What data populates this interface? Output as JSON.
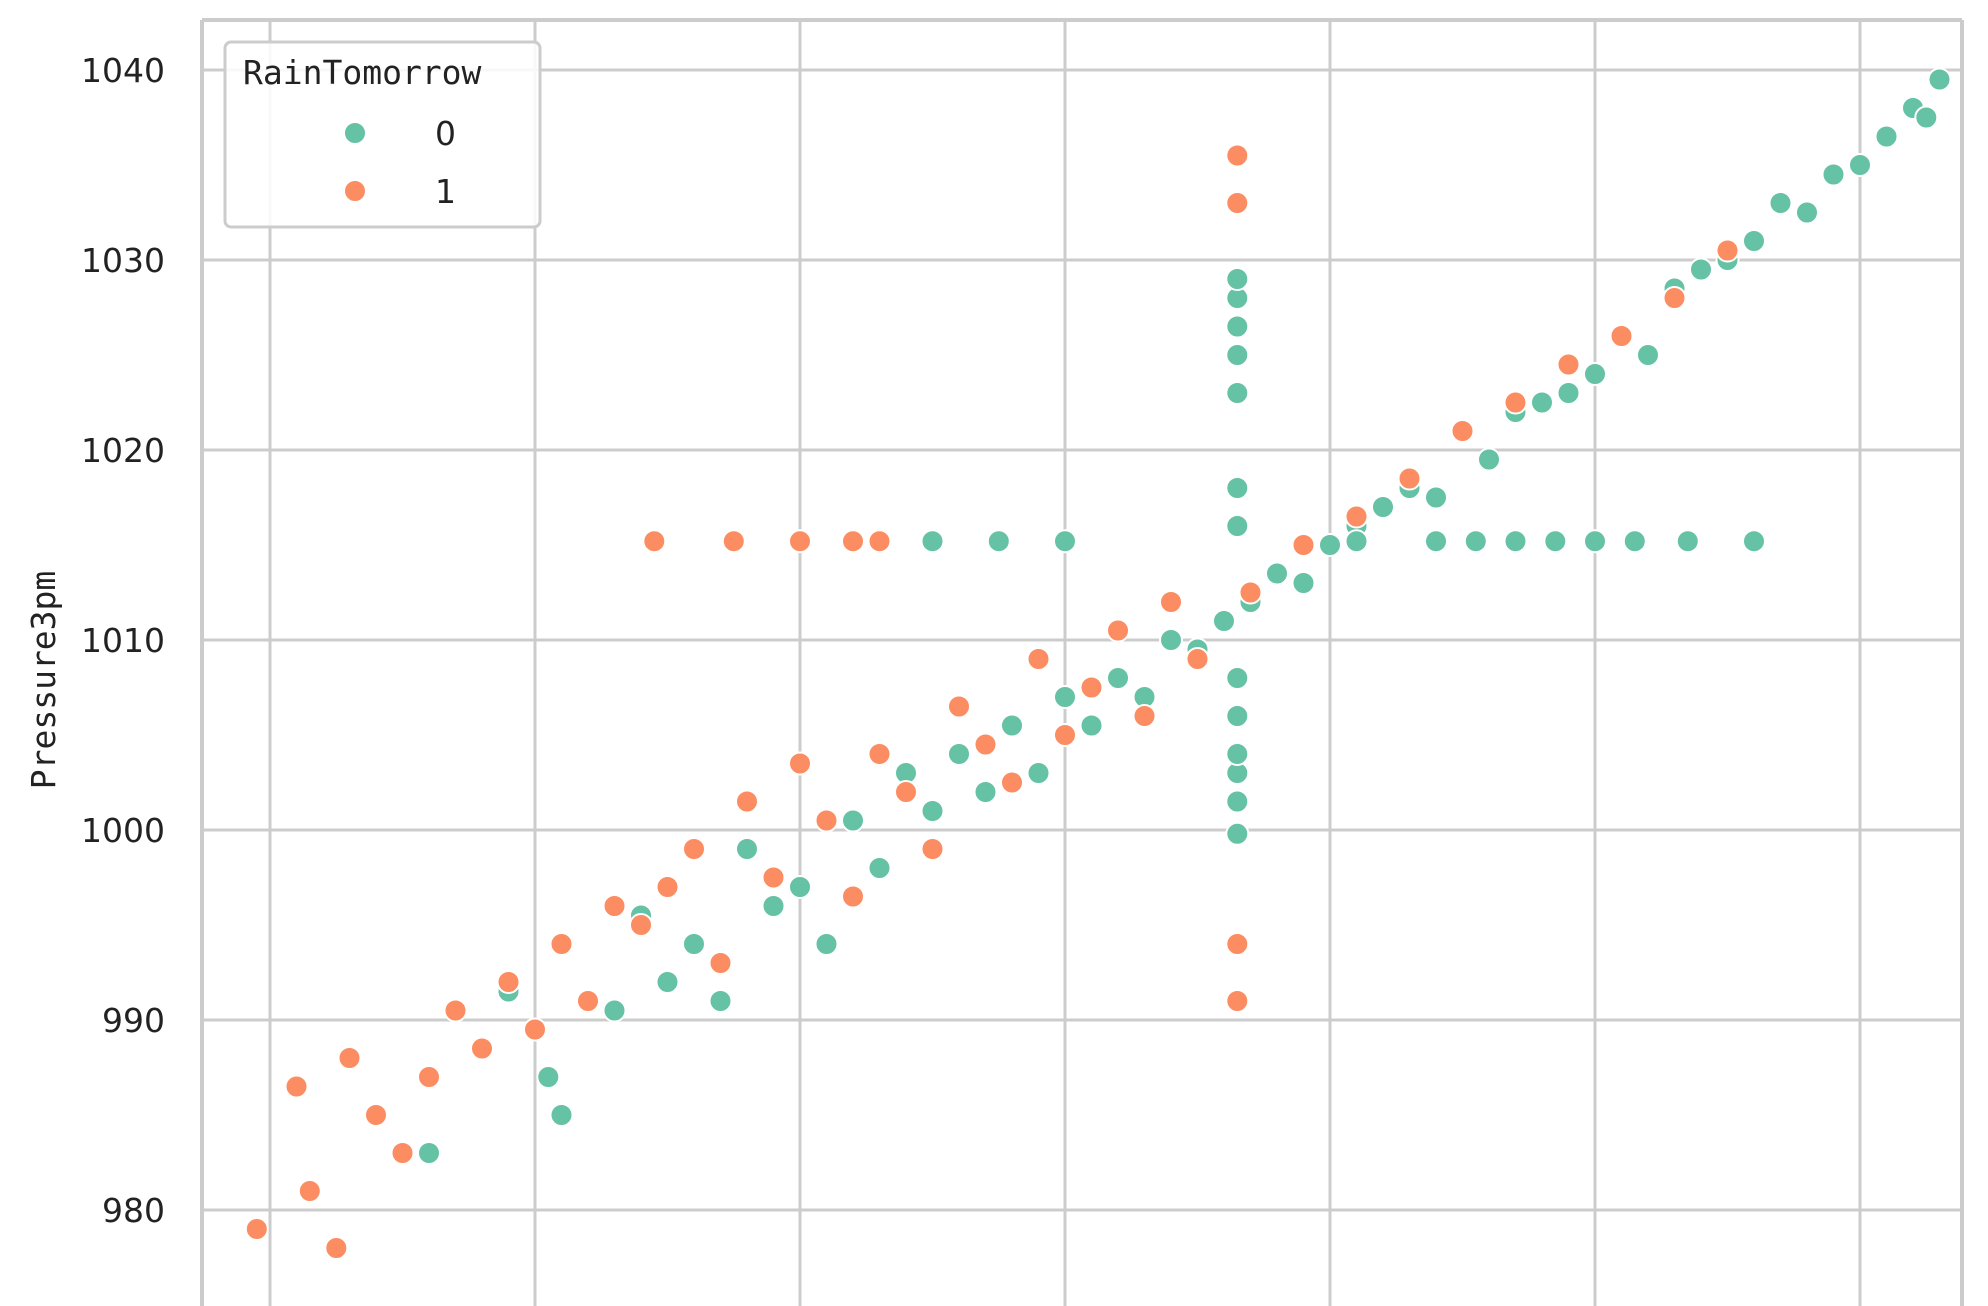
{
  "chart_data": {
    "type": "scatter",
    "title": "",
    "xlabel": "",
    "ylabel": "Pressure3pm",
    "ylim": [
      976,
      1042
    ],
    "xlim": [
      976,
      1042
    ],
    "yticks": [
      "980",
      "990",
      "1000",
      "1010",
      "1020",
      "1030",
      "1040"
    ],
    "grid": true,
    "legend": {
      "title": "RainTomorrow",
      "placement": "top-left",
      "entries": [
        {
          "label": "0",
          "color": "#66c2a5"
        },
        {
          "label": "1",
          "color": "#fc8d62"
        }
      ]
    },
    "series": [
      {
        "name": "0",
        "color": "#66c2a5",
        "x": [
          983.0,
          986.0,
          987.5,
          988.0,
          990.0,
          991.0,
          992.0,
          993.0,
          994.0,
          995.0,
          996.0,
          997.0,
          998.0,
          999.0,
          1000.0,
          1001.0,
          1002.0,
          1003.0,
          1004.0,
          1005.0,
          1006.0,
          1007.0,
          1008.0,
          1009.0,
          1010.0,
          1011.0,
          1012.0,
          1013.0,
          1014.0,
          1015.0,
          1016.0,
          1017.0,
          1018.0,
          1019.0,
          1020.0,
          1021.0,
          1022.0,
          1023.0,
          1024.0,
          1025.0,
          1026.0,
          1027.0,
          1028.0,
          1029.0,
          1030.0,
          1031.0,
          1032.0,
          1033.0,
          1034.0,
          1035.0,
          1036.0,
          1037.0,
          1038.0,
          1039.0,
          1039.5,
          1040.0
        ],
        "y": [
          983.0,
          991.5,
          987.0,
          985.0,
          990.5,
          995.5,
          992.0,
          994.0,
          991.0,
          999.0,
          996.0,
          997.0,
          994.0,
          1000.5,
          998.0,
          1003.0,
          1001.0,
          1004.0,
          1002.0,
          1005.5,
          1003.0,
          1007.0,
          1005.5,
          1008.0,
          1007.0,
          1010.0,
          1009.5,
          1011.0,
          1012.0,
          1013.5,
          1013.0,
          1015.0,
          1016.0,
          1017.0,
          1018.0,
          1017.5,
          1021.0,
          1019.5,
          1022.0,
          1022.5,
          1023.0,
          1024.0,
          1026.0,
          1025.0,
          1028.5,
          1029.5,
          1030.0,
          1031.0,
          1033.0,
          1032.5,
          1034.5,
          1035.0,
          1036.5,
          1038.0,
          1037.5,
          1039.5
        ]
      },
      {
        "name": "0",
        "color": "#66c2a5",
        "x": [
          1013.5,
          1013.5,
          1013.5,
          1013.5,
          1013.5,
          1013.5,
          1013.5,
          1013.5,
          1013.5,
          1013.5,
          1013.5,
          1013.5,
          1013.5,
          1002.0,
          1004.5,
          1007.0,
          1018.0,
          1021.0,
          1022.5,
          1024.0,
          1025.5,
          1027.0,
          1028.5,
          1030.5,
          1033.0
        ],
        "y": [
          999.8,
          1001.5,
          1003.0,
          1004.0,
          1006.0,
          1008.0,
          1016.0,
          1018.0,
          1023.0,
          1025.0,
          1026.5,
          1028.0,
          1029.0,
          1015.2,
          1015.2,
          1015.2,
          1015.2,
          1015.2,
          1015.2,
          1015.2,
          1015.2,
          1015.2,
          1015.2,
          1015.2,
          1015.2
        ]
      },
      {
        "name": "1",
        "color": "#fc8d62",
        "x": [
          976.5,
          978.0,
          978.5,
          979.5,
          980.0,
          981.0,
          982.0,
          983.0,
          984.0,
          985.0,
          986.0,
          987.0,
          988.0,
          989.0,
          990.0,
          991.0,
          992.0,
          993.0,
          994.0,
          995.0,
          996.0,
          997.0,
          998.0,
          999.0,
          1000.0,
          1001.0,
          1002.0,
          1003.0,
          1004.0,
          1005.0,
          1006.0,
          1007.0,
          1008.0,
          1009.0,
          1010.0,
          1011.0,
          1012.0,
          1014.0,
          1016.0,
          1018.0,
          1020.0,
          1022.0,
          1024.0,
          1026.0,
          1028.0,
          1030.0,
          1032.0
        ],
        "y": [
          979.0,
          986.5,
          981.0,
          978.0,
          988.0,
          985.0,
          983.0,
          987.0,
          990.5,
          988.5,
          992.0,
          989.5,
          994.0,
          991.0,
          996.0,
          995.0,
          997.0,
          999.0,
          993.0,
          1001.5,
          997.5,
          1003.5,
          1000.5,
          996.5,
          1004.0,
          1002.0,
          999.0,
          1006.5,
          1004.5,
          1002.5,
          1009.0,
          1005.0,
          1007.5,
          1010.5,
          1006.0,
          1012.0,
          1009.0,
          1012.5,
          1015.0,
          1016.5,
          1018.5,
          1021.0,
          1022.5,
          1024.5,
          1026.0,
          1028.0,
          1030.5
        ]
      },
      {
        "name": "1",
        "color": "#fc8d62",
        "x": [
          1013.5,
          1013.5,
          1013.5,
          1013.5,
          991.5,
          994.5,
          997.0,
          999.0,
          1000.0
        ],
        "y": [
          1035.5,
          1033.0,
          994.0,
          991.0,
          1015.2,
          1015.2,
          1015.2,
          1015.2,
          1015.2
        ]
      }
    ]
  }
}
